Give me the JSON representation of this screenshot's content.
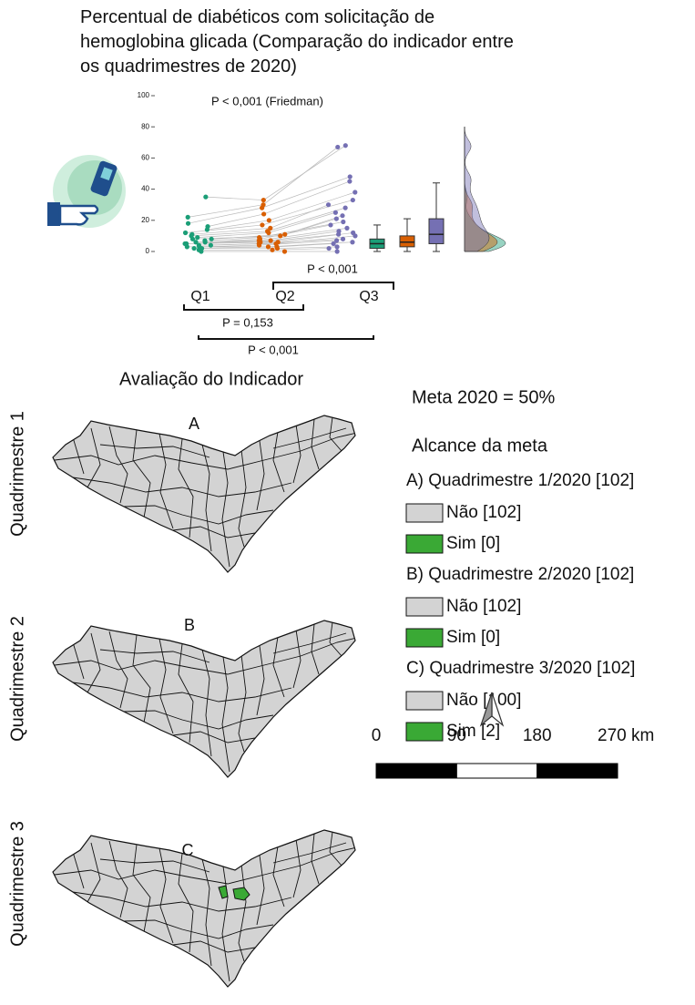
{
  "chart_data": {
    "type": "raincloud",
    "title": "Percentual de diabéticos com solicitação de hemoglobina glicada (Comparação do indicador entre os quadrimestres de 2020)",
    "annotations": [
      "P < 0,001 (Friedman)",
      "P < 0,001",
      "P = 0,153",
      "P < 0,001"
    ],
    "ylim": [
      0,
      100
    ],
    "yticks": [
      0,
      20,
      40,
      60,
      80,
      100
    ],
    "series": [
      {
        "name": "Q1",
        "color": "#1b9e77",
        "values": [
          0,
          1,
          2,
          2,
          3,
          3,
          4,
          4,
          5,
          5,
          5,
          6,
          6,
          7,
          8,
          8,
          9,
          10,
          11,
          12,
          14,
          16,
          18,
          22,
          35
        ],
        "box": {
          "min": 0,
          "q1": 2,
          "median": 5,
          "q3": 8,
          "max": 17
        }
      },
      {
        "name": "Q2",
        "color": "#d95f02",
        "values": [
          0,
          1,
          2,
          3,
          3,
          4,
          5,
          5,
          6,
          6,
          7,
          7,
          8,
          9,
          10,
          11,
          12,
          13,
          15,
          17,
          20,
          24,
          28,
          30,
          33
        ],
        "box": {
          "min": 0,
          "q1": 3,
          "median": 6,
          "q3": 10,
          "max": 21
        }
      },
      {
        "name": "Q3",
        "color": "#7570b3",
        "values": [
          0,
          2,
          3,
          5,
          6,
          7,
          8,
          10,
          11,
          12,
          13,
          15,
          17,
          19,
          21,
          23,
          25,
          28,
          30,
          33,
          38,
          45,
          48,
          67,
          68
        ],
        "box": {
          "min": 0,
          "q1": 5,
          "median": 11,
          "q3": 21,
          "max": 44
        }
      }
    ]
  },
  "maps": {
    "section_title": "Avaliação do Indicador",
    "panels": [
      {
        "row_label": "Quadrimestre 1",
        "letter": "A"
      },
      {
        "row_label": "Quadrimestre 2",
        "letter": "B"
      },
      {
        "row_label": "Quadrimestre 3",
        "letter": "C"
      }
    ],
    "legend": {
      "meta": "Meta 2020 = 50%",
      "title": "Alcance da meta",
      "groups": [
        {
          "label": "A) Quadrimestre 1/2020 [102]",
          "items": [
            {
              "label": "Não [102]",
              "color": "#d3d3d3"
            },
            {
              "label": "Sim [0]",
              "color": "#3aa935"
            }
          ]
        },
        {
          "label": "B) Quadrimestre 2/2020 [102]",
          "items": [
            {
              "label": "Não [102]",
              "color": "#d3d3d3"
            },
            {
              "label": "Sim [0]",
              "color": "#3aa935"
            }
          ]
        },
        {
          "label": "C) Quadrimestre 3/2020 [102]",
          "items": [
            {
              "label": "Não [100]",
              "color": "#d3d3d3"
            },
            {
              "label": "Sim [2]",
              "color": "#3aa935"
            }
          ]
        }
      ]
    },
    "scale_bar": {
      "ticks": [
        0,
        90,
        180,
        {
          "value": 270,
          "label": "270 km"
        }
      ]
    }
  }
}
